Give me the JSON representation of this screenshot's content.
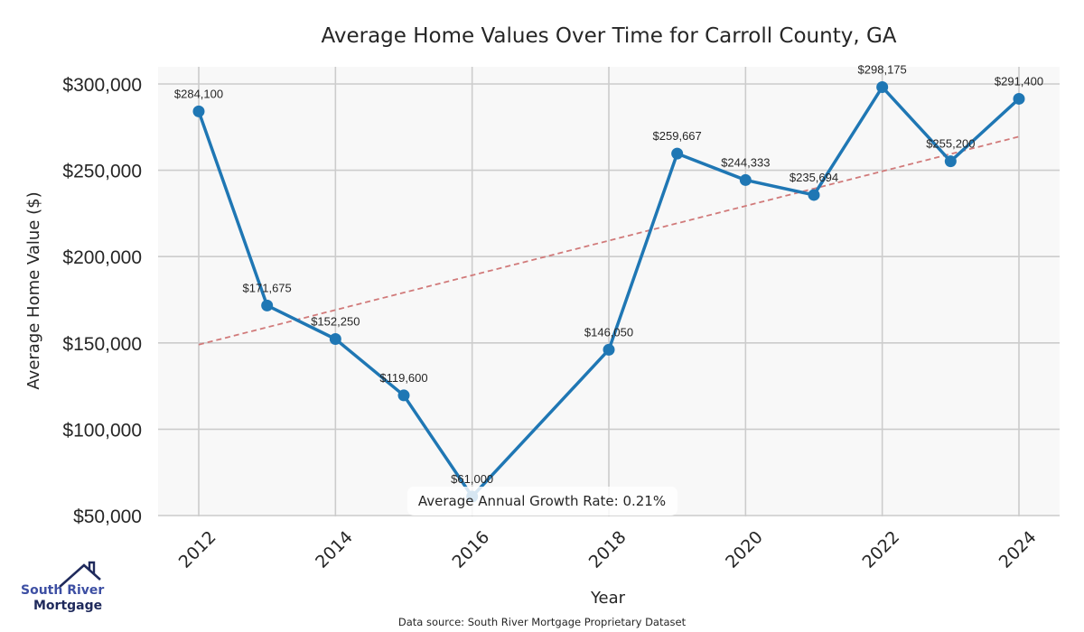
{
  "chart_data": {
    "type": "line",
    "title": "Average Home Values Over Time for Carroll County, GA",
    "xlabel": "Year",
    "ylabel": "Average Home Value ($)",
    "x": [
      2012,
      2013,
      2014,
      2015,
      2016,
      2018,
      2019,
      2020,
      2021,
      2022,
      2023,
      2024
    ],
    "series": [
      {
        "name": "Average Home Value",
        "values": [
          284100,
          171675,
          152250,
          119600,
          61000,
          146050,
          259667,
          244333,
          235694,
          298175,
          255200,
          291400
        ],
        "labels": [
          "$284,100",
          "$171,675",
          "$152,250",
          "$119,600",
          "$61,000",
          "$146,050",
          "$259,667",
          "$244,333",
          "$235,694",
          "$298,175",
          "$255,200",
          "$291,400"
        ],
        "color": "#1f77b4"
      }
    ],
    "trend_line": {
      "start_year": 2012,
      "start_value": 149000,
      "end_year": 2024,
      "end_value": 269500,
      "color": "#d17a7a",
      "style": "dashed"
    },
    "xlim": [
      2011.3,
      2024.6
    ],
    "ylim": [
      46000,
      310000
    ],
    "xticks": [
      2012,
      2014,
      2016,
      2018,
      2020,
      2022,
      2024
    ],
    "xtick_labels": [
      "2012",
      "2014",
      "2016",
      "2018",
      "2020",
      "2022",
      "2024"
    ],
    "yticks": [
      50000,
      100000,
      150000,
      200000,
      250000,
      300000
    ],
    "ytick_labels": [
      "$50,000",
      "$100,000",
      "$150,000",
      "$200,000",
      "$250,000",
      "$300,000"
    ],
    "grid": true,
    "background": "#f8f8f8",
    "grid_color": "#cccccc",
    "annotation": "Average Annual Growth Rate: 0.21%",
    "source": "Data source: South River Mortgage Proprietary Dataset"
  },
  "logo": {
    "line1": "South River",
    "line2": "Mortgage"
  }
}
